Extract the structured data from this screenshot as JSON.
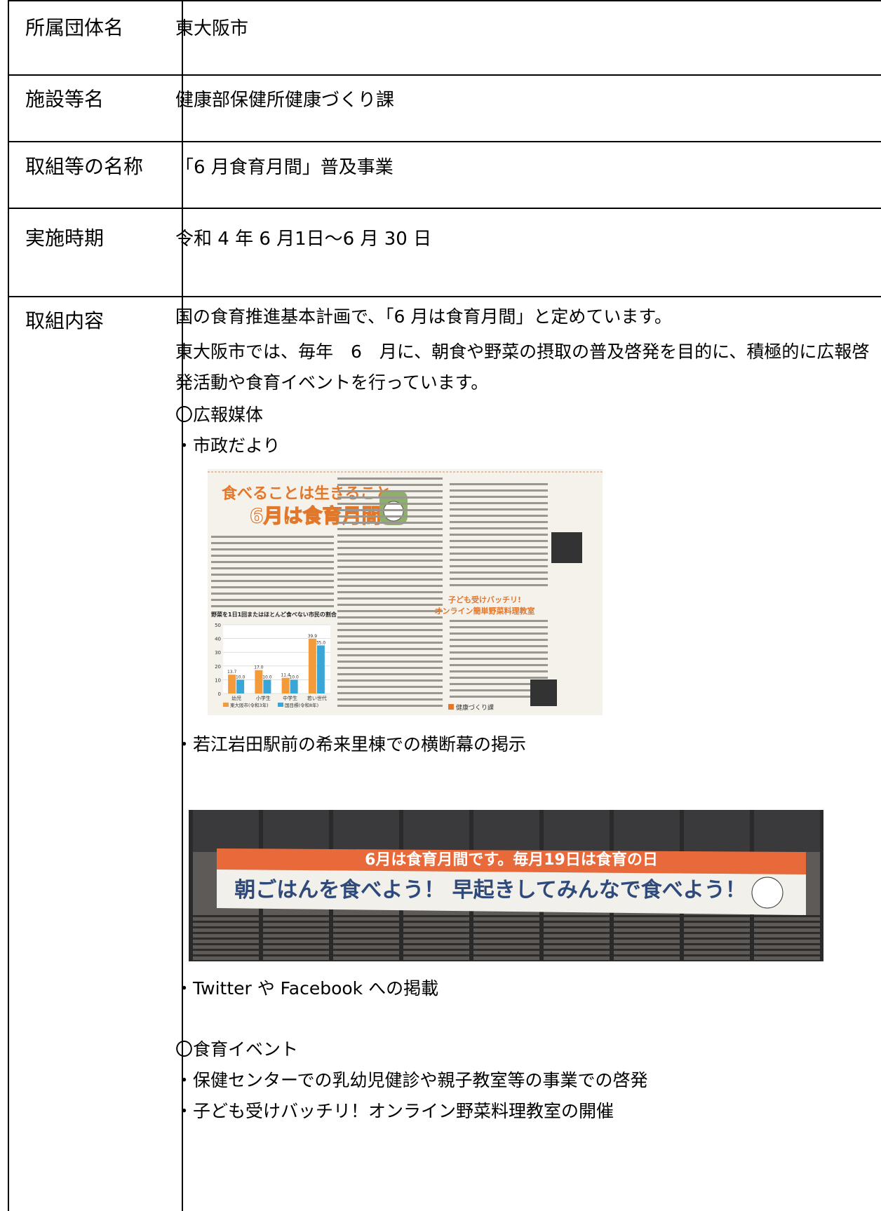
{
  "table": {
    "rows": [
      [
        "所属団体名",
        "東大阪市"
      ],
      [
        "施設等名",
        "健康部保健所健康づくり課"
      ],
      [
        "取組等の名称",
        "「6 月食育月間」普及事業"
      ],
      [
        "実施時期",
        "令和 4 年 6 月1日～6 月 30 日"
      ]
    ]
  },
  "content": {
    "label": "取組内容",
    "paragraph": [
      "国の食育推進基本計画で、「6 月は食育月間」と定めています。",
      "東大阪市では、毎年　6　月に、朝食や野菜の摂取の普及啓発を目的に、積極的に広報啓発活動や食育イベントを行っています。"
    ],
    "media_heading": "〇広報媒体",
    "item_city": "・市政だより",
    "item_banner": "・若江岩田駅前の希来里棟での横断幕の掲示",
    "item_sns": "・Twitter や Facebook への掲載",
    "event_heading": "〇食育イベント",
    "event_items": [
      "・保健センターでの乳幼児健診や親子教室等の事業での啓発",
      "・子ども受けバッチリ！オンライン野菜料理教室の開催"
    ]
  },
  "newspaper": {
    "headline1": "食べることは生きること",
    "headline2": "6月は食育月間",
    "subhead1": "子ども受けバッチリ!",
    "subhead2": "オンライン簡単野菜料理教室",
    "footer": "健康づくり課",
    "chart": {
      "title": "野菜を1日1回またはほとんど食べない市民の割合",
      "categories": [
        "幼児",
        "小学生",
        "中学生",
        "若い世代"
      ],
      "series": [
        {
          "name": "東大阪市(令和3年)",
          "color": "#f39a3a",
          "values": [
            13.7,
            17.0,
            11.4,
            39.9
          ],
          "value_labels": [
            "13.7",
            "17.0",
            "11.4",
            "39.9"
          ]
        },
        {
          "name": "国目標(令和8年)",
          "color": "#3aa6d8",
          "values": [
            10.0,
            10.0,
            10.0,
            35.0
          ],
          "value_labels": [
            "10.0",
            "10.0",
            "10.0",
            "35.0"
          ]
        }
      ],
      "ylim": [
        0,
        50
      ],
      "yticks": [
        0,
        10,
        20,
        30,
        40,
        50
      ]
    }
  },
  "banner": {
    "top": "6月は食育月間です。毎月19日は食育の日",
    "main": "朝ごはんを食べよう！ 早起きしてみんなで食べよう！"
  }
}
